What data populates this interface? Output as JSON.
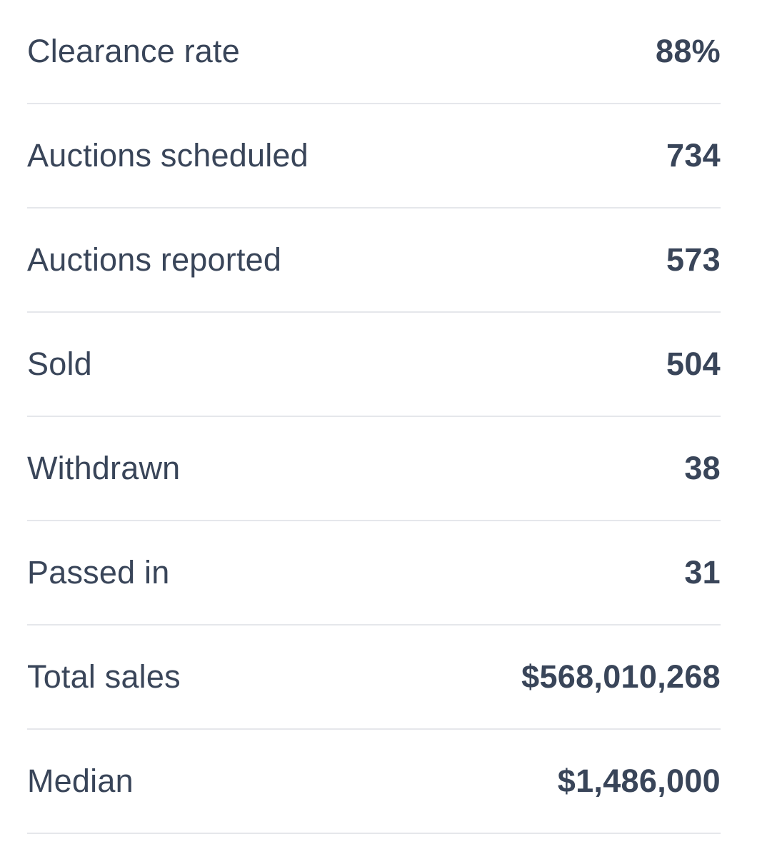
{
  "stats": [
    {
      "label": "Clearance rate",
      "value": "88%"
    },
    {
      "label": "Auctions scheduled",
      "value": "734"
    },
    {
      "label": "Auctions reported",
      "value": "573"
    },
    {
      "label": "Sold",
      "value": "504"
    },
    {
      "label": "Withdrawn",
      "value": "38"
    },
    {
      "label": "Passed in",
      "value": "31"
    },
    {
      "label": "Total sales",
      "value": "$568,010,268"
    },
    {
      "label": "Median",
      "value": "$1,486,000"
    }
  ],
  "colors": {
    "text": "#394559",
    "divider": "#e5e7eb",
    "background": "#ffffff"
  }
}
